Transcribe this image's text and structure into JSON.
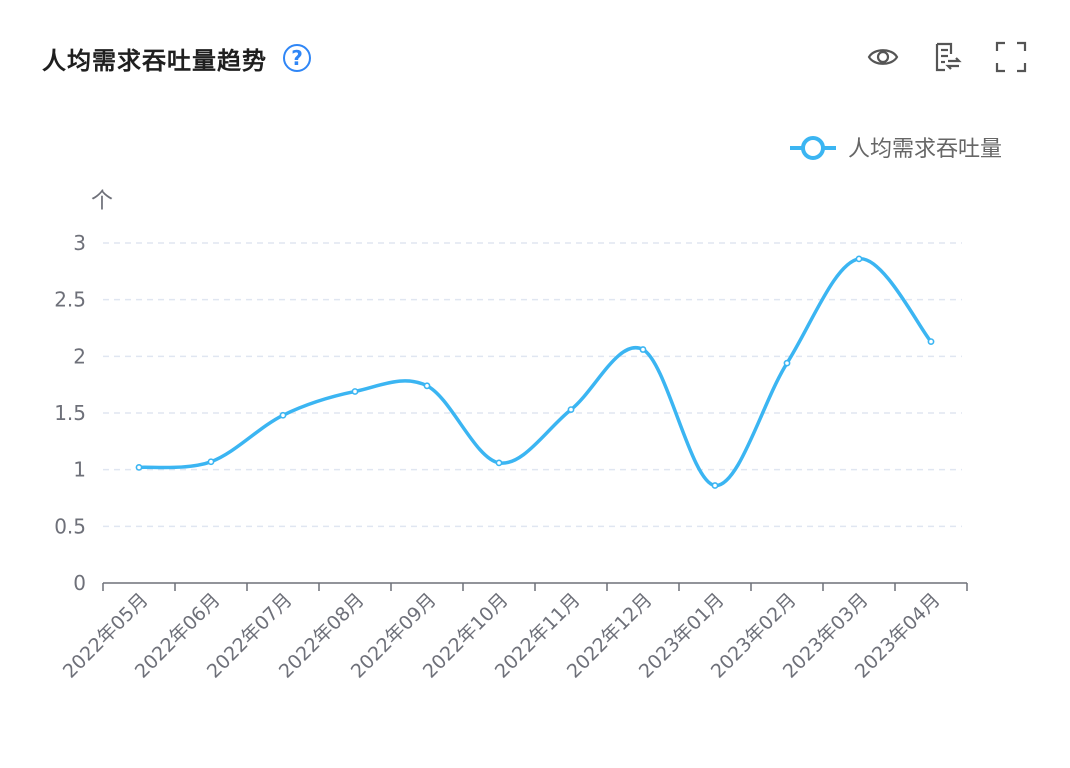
{
  "header": {
    "title": "人均需求吞吐量趋势",
    "help_glyph": "?"
  },
  "toolbar": {
    "icons": [
      "eye-icon",
      "data-view-icon",
      "fullscreen-icon"
    ]
  },
  "colors": {
    "series": "#3bb5f2",
    "axis": "#6e7079",
    "grid": "#e0e6f1",
    "help": "#2f86f6",
    "title": "#1f1f1f"
  },
  "chart_data": {
    "type": "line",
    "title": "人均需求吞吐量趋势",
    "ylabel": "个",
    "xlabel": "",
    "ylim": [
      0,
      3
    ],
    "yticks": [
      "0",
      "0.5",
      "1",
      "1.5",
      "2",
      "2.5",
      "3"
    ],
    "categories": [
      "2022年05月",
      "2022年06月",
      "2022年07月",
      "2022年08月",
      "2022年09月",
      "2022年10月",
      "2022年11月",
      "2022年12月",
      "2023年01月",
      "2023年02月",
      "2023年03月",
      "2023年04月"
    ],
    "series": [
      {
        "name": "人均需求吞吐量",
        "values": [
          1.02,
          1.07,
          1.48,
          1.69,
          1.74,
          1.06,
          1.53,
          2.06,
          0.86,
          1.94,
          2.86,
          2.13
        ]
      }
    ],
    "smooth": true,
    "grid": true,
    "legend_position": "top-right"
  }
}
